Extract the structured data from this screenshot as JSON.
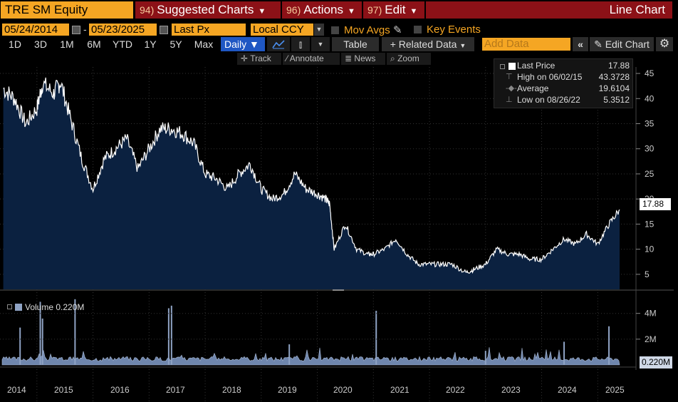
{
  "toolbar": {
    "ticker": "TRE SM Equity",
    "suggested": {
      "num": "94)",
      "label": "Suggested Charts"
    },
    "actions": {
      "num": "96)",
      "label": "Actions"
    },
    "edit": {
      "num": "97)",
      "label": "Edit"
    },
    "title": "Line Chart"
  },
  "controls": {
    "start_date": "05/24/2014",
    "end_date": "05/23/2025",
    "field": "Last Px",
    "currency": "Local CCY",
    "mov_avgs": "Mov Avgs",
    "key_events": "Key Events",
    "periods": [
      "1D",
      "3D",
      "1M",
      "6M",
      "YTD",
      "1Y",
      "5Y",
      "Max"
    ],
    "frequency": "Daily",
    "table": "Table",
    "related_data": "+ Related Data",
    "add_data_placeholder": "Add Data",
    "edit_chart": "Edit Chart"
  },
  "subtoolbar": {
    "track": "Track",
    "annotate": "Annotate",
    "news": "News",
    "zoom": "Zoom"
  },
  "legend": {
    "last_price": {
      "label": "Last Price",
      "value": "17.88"
    },
    "high": {
      "label": "High on 06/02/15",
      "value": "43.3728"
    },
    "average": {
      "label": "Average",
      "value": "19.6104"
    },
    "low": {
      "label": "Low on 08/26/22",
      "value": "5.3512"
    }
  },
  "price_tag": "17.88",
  "volume": {
    "label": "Volume",
    "value": "0.220M",
    "tag": "0.220M"
  },
  "colors": {
    "accent": "#f5a623",
    "title_red": "#8c1117",
    "daily_blue": "#1f57c3",
    "area_fill": "#0b2140",
    "vol_color": "#8fa3c4"
  },
  "chart_data": [
    {
      "type": "area",
      "title": "TRE SM Equity — Last Price",
      "series": [
        {
          "name": "Last Price",
          "x": [
            2014.4,
            2014.6,
            2014.8,
            2015.0,
            2015.1,
            2015.3,
            2015.42,
            2015.6,
            2015.8,
            2016.0,
            2016.2,
            2016.4,
            2016.6,
            2016.8,
            2017.0,
            2017.2,
            2017.4,
            2017.6,
            2017.8,
            2018.0,
            2018.2,
            2018.4,
            2018.6,
            2018.8,
            2019.0,
            2019.2,
            2019.4,
            2019.6,
            2019.8,
            2020.0,
            2020.15,
            2020.22,
            2020.3,
            2020.5,
            2020.7,
            2020.9,
            2021.0,
            2021.2,
            2021.4,
            2021.6,
            2021.8,
            2022.0,
            2022.2,
            2022.4,
            2022.65,
            2022.8,
            2023.0,
            2023.2,
            2023.4,
            2023.6,
            2023.8,
            2024.0,
            2024.2,
            2024.4,
            2024.6,
            2024.8,
            2025.0,
            2025.2,
            2025.39
          ],
          "values": [
            42,
            40,
            35,
            38,
            43,
            41,
            43.37,
            36,
            28,
            22,
            28,
            30,
            32,
            26,
            30,
            34,
            34,
            33,
            31,
            25,
            24,
            22,
            25,
            27,
            22,
            20,
            21,
            25,
            22,
            21,
            20,
            19,
            10,
            15,
            10,
            9,
            9,
            10,
            12,
            9,
            7,
            7,
            7,
            7,
            5.35,
            6,
            7,
            10,
            9,
            9,
            8,
            8,
            10,
            12,
            11,
            13,
            11,
            15,
            17.88
          ]
        }
      ],
      "xlim": [
        2014.38,
        2025.39
      ],
      "ylim": [
        2,
        46
      ],
      "yticks": [
        5,
        10,
        15,
        20,
        25,
        30,
        35,
        40,
        45
      ],
      "ylabel": ""
    },
    {
      "type": "bar",
      "title": "Volume",
      "spikes": [
        {
          "x": 2014.7,
          "v": 2.9
        },
        {
          "x": 2015.06,
          "v": 4.9
        },
        {
          "x": 2015.1,
          "v": 3.6
        },
        {
          "x": 2015.68,
          "v": 5.1
        },
        {
          "x": 2017.35,
          "v": 4.4
        },
        {
          "x": 2017.4,
          "v": 4.6
        },
        {
          "x": 2019.5,
          "v": 1.6
        },
        {
          "x": 2021.05,
          "v": 4.2
        },
        {
          "x": 2023.0,
          "v": 1.1
        },
        {
          "x": 2024.4,
          "v": 1.8
        },
        {
          "x": 2025.2,
          "v": 3.0
        }
      ],
      "baseline": 0.3,
      "ylim": [
        0,
        5.2
      ],
      "yticks": [
        "2M",
        "4M"
      ],
      "unit": "M"
    }
  ],
  "x_axis": {
    "years": [
      "2014",
      "2015",
      "2016",
      "2017",
      "2018",
      "2019",
      "2020",
      "2021",
      "2022",
      "2023",
      "2024",
      "2025"
    ]
  }
}
